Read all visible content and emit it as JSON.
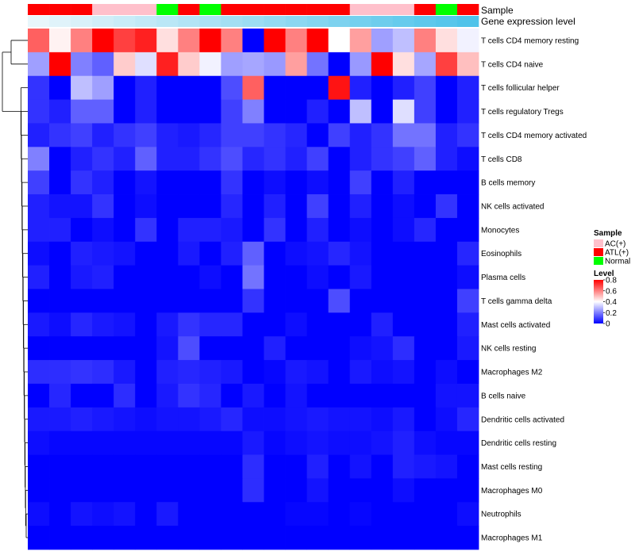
{
  "chart_data": {
    "type": "heatmap",
    "annotation_labels": [
      "Sample",
      "Gene expression level"
    ],
    "sample_groups": [
      "ATL(+)",
      "ATL(+)",
      "ATL(+)",
      "AC(+)",
      "AC(+)",
      "AC(+)",
      "Normal",
      "ATL(+)",
      "Normal",
      "ATL(+)",
      "ATL(+)",
      "ATL(+)",
      "ATL(+)",
      "ATL(+)",
      "ATL(+)",
      "AC(+)",
      "AC(+)",
      "AC(+)",
      "ATL(+)",
      "Normal",
      "ATL(+)"
    ],
    "gene_expression_level": [
      0.1,
      0.13,
      0.16,
      0.19,
      0.22,
      0.25,
      0.28,
      0.31,
      0.34,
      0.37,
      0.4,
      0.43,
      0.46,
      0.49,
      0.52,
      0.55,
      0.58,
      0.61,
      0.64,
      0.67,
      0.7
    ],
    "rows": [
      "T cells CD4 memory resting",
      "T cells CD4 naive",
      "T cells follicular helper",
      "T cells regulatory  Tregs",
      "T cells CD4 memory activated",
      "T cells CD8",
      "B cells memory",
      "NK cells activated",
      "Monocytes",
      "Eosinophils",
      "Plasma cells",
      "T cells gamma delta",
      "Mast cells activated",
      "NK cells resting",
      "Macrophages M2",
      "B cells naive",
      "Dendritic cells activated",
      "Dendritic cells resting",
      "Mast cells resting",
      "Macrophages M0",
      "Neutrophils",
      "Macrophages M1"
    ],
    "values": [
      [
        0.65,
        0.42,
        0.6,
        0.8,
        0.7,
        0.75,
        0.45,
        0.6,
        0.8,
        0.6,
        0.0,
        0.8,
        0.6,
        0.8,
        0.4,
        0.55,
        0.25,
        0.3,
        0.6,
        0.45,
        0.38
      ],
      [
        0.25,
        0.8,
        0.2,
        0.15,
        0.48,
        0.35,
        0.75,
        0.48,
        0.38,
        0.25,
        0.26,
        0.24,
        0.55,
        0.18,
        0.0,
        0.24,
        0.8,
        0.45,
        0.26,
        0.7,
        0.5
      ],
      [
        0.08,
        0.0,
        0.3,
        0.25,
        0.0,
        0.05,
        0.0,
        0.0,
        0.0,
        0.12,
        0.65,
        0.0,
        0.0,
        0.0,
        0.77,
        0.05,
        0.0,
        0.05,
        0.1,
        0.0,
        0.05
      ],
      [
        0.08,
        0.05,
        0.15,
        0.15,
        0.0,
        0.05,
        0.0,
        0.0,
        0.0,
        0.1,
        0.2,
        0.0,
        0.0,
        0.05,
        0.0,
        0.3,
        0.0,
        0.35,
        0.1,
        0.0,
        0.05
      ],
      [
        0.05,
        0.08,
        0.1,
        0.05,
        0.08,
        0.1,
        0.05,
        0.04,
        0.06,
        0.1,
        0.1,
        0.08,
        0.06,
        0.0,
        0.1,
        0.05,
        0.08,
        0.18,
        0.18,
        0.05,
        0.08
      ],
      [
        0.2,
        0.0,
        0.05,
        0.08,
        0.05,
        0.15,
        0.05,
        0.05,
        0.08,
        0.12,
        0.06,
        0.08,
        0.05,
        0.1,
        0.0,
        0.05,
        0.08,
        0.1,
        0.15,
        0.05,
        0.02
      ],
      [
        0.1,
        0.0,
        0.08,
        0.05,
        0.0,
        0.03,
        0.0,
        0.0,
        0.0,
        0.08,
        0.0,
        0.02,
        0.0,
        0.02,
        0.0,
        0.1,
        0.0,
        0.05,
        0.0,
        0.0,
        0.0
      ],
      [
        0.05,
        0.03,
        0.03,
        0.08,
        0.0,
        0.02,
        0.0,
        0.0,
        0.0,
        0.06,
        0.0,
        0.05,
        0.0,
        0.1,
        0.0,
        0.05,
        0.0,
        0.02,
        0.0,
        0.08,
        0.0
      ],
      [
        0.05,
        0.05,
        0.0,
        0.02,
        0.0,
        0.08,
        0.0,
        0.05,
        0.05,
        0.04,
        0.0,
        0.08,
        0.0,
        0.05,
        0.0,
        0.02,
        0.0,
        0.02,
        0.06,
        0.0,
        0.0
      ],
      [
        0.02,
        0.0,
        0.05,
        0.04,
        0.03,
        0.0,
        0.0,
        0.04,
        0.0,
        0.05,
        0.15,
        0.0,
        0.02,
        0.03,
        0.06,
        0.03,
        0.0,
        0.0,
        0.0,
        0.0,
        0.06
      ],
      [
        0.05,
        0.0,
        0.04,
        0.05,
        0.0,
        0.0,
        0.0,
        0.0,
        0.02,
        0.0,
        0.18,
        0.0,
        0.0,
        0.02,
        0.0,
        0.04,
        0.0,
        0.0,
        0.0,
        0.0,
        0.02
      ],
      [
        0.0,
        0.0,
        0.0,
        0.0,
        0.0,
        0.0,
        0.0,
        0.0,
        0.0,
        0.0,
        0.08,
        0.0,
        0.0,
        0.0,
        0.12,
        0.0,
        0.0,
        0.0,
        0.0,
        0.0,
        0.1
      ],
      [
        0.04,
        0.02,
        0.06,
        0.04,
        0.03,
        0.0,
        0.04,
        0.08,
        0.06,
        0.06,
        0.0,
        0.0,
        0.02,
        0.0,
        0.0,
        0.0,
        0.05,
        0.0,
        0.0,
        0.0,
        0.05
      ],
      [
        0.0,
        0.0,
        0.0,
        0.0,
        0.0,
        0.0,
        0.03,
        0.12,
        0.0,
        0.0,
        0.0,
        0.05,
        0.0,
        0.0,
        0.0,
        0.02,
        0.03,
        0.07,
        0.0,
        0.0,
        0.04
      ],
      [
        0.07,
        0.07,
        0.08,
        0.07,
        0.04,
        0.0,
        0.05,
        0.06,
        0.05,
        0.04,
        0.0,
        0.01,
        0.04,
        0.03,
        0.0,
        0.04,
        0.02,
        0.03,
        0.0,
        0.02,
        0.0
      ],
      [
        0.0,
        0.06,
        0.0,
        0.0,
        0.07,
        0.0,
        0.04,
        0.08,
        0.06,
        0.0,
        0.04,
        0.0,
        0.03,
        0.0,
        0.0,
        0.0,
        0.0,
        0.0,
        0.0,
        0.03,
        0.03
      ],
      [
        0.04,
        0.04,
        0.05,
        0.04,
        0.03,
        0.02,
        0.03,
        0.03,
        0.04,
        0.06,
        0.02,
        0.02,
        0.03,
        0.04,
        0.03,
        0.03,
        0.02,
        0.04,
        0.0,
        0.02,
        0.06
      ],
      [
        0.02,
        0.01,
        0.01,
        0.01,
        0.01,
        0.01,
        0.01,
        0.01,
        0.01,
        0.01,
        0.04,
        0.01,
        0.02,
        0.03,
        0.02,
        0.02,
        0.03,
        0.05,
        0.02,
        0.01,
        0.01
      ],
      [
        0.0,
        0.0,
        0.0,
        0.0,
        0.0,
        0.0,
        0.0,
        0.0,
        0.0,
        0.0,
        0.07,
        0.0,
        0.0,
        0.05,
        0.0,
        0.03,
        0.0,
        0.05,
        0.04,
        0.03,
        0.0
      ],
      [
        0.0,
        0.0,
        0.0,
        0.0,
        0.0,
        0.0,
        0.0,
        0.0,
        0.0,
        0.0,
        0.07,
        0.0,
        0.0,
        0.03,
        0.0,
        0.0,
        0.0,
        0.02,
        0.0,
        0.0,
        0.0
      ],
      [
        0.02,
        0.0,
        0.03,
        0.02,
        0.03,
        0.0,
        0.04,
        0.0,
        0.0,
        0.0,
        0.0,
        0.0,
        0.01,
        0.01,
        0.0,
        0.01,
        0.0,
        0.0,
        0.0,
        0.0,
        0.02
      ],
      [
        0.0,
        0.0,
        0.0,
        0.0,
        0.0,
        0.0,
        0.0,
        0.0,
        0.0,
        0.0,
        0.0,
        0.0,
        0.0,
        0.0,
        0.0,
        0.0,
        0.0,
        0.0,
        0.0,
        0.0,
        0.0
      ]
    ],
    "color_scale": {
      "min": 0,
      "mid": 0.4,
      "max": 0.8,
      "low_color": "#0000ff",
      "mid_color": "#ffffff",
      "high_color": "#ff0000"
    },
    "legend": {
      "sample_title": "Sample",
      "sample_entries": [
        {
          "label": "AC(+)",
          "color": "#ffc0cb"
        },
        {
          "label": "ATL(+)",
          "color": "#ff0000"
        },
        {
          "label": "Normal",
          "color": "#00ff00"
        }
      ],
      "level_title": "Level",
      "level_ticks": [
        "0.8",
        "0.6",
        "0.4",
        "0.2",
        "0"
      ],
      "level_tick_values": [
        0.8,
        0.6,
        0.4,
        0.2,
        0
      ],
      "position": "right"
    },
    "annotation_colors": {
      "expr_low": "#e8f6fb",
      "expr_high": "#4fc3ea"
    }
  }
}
